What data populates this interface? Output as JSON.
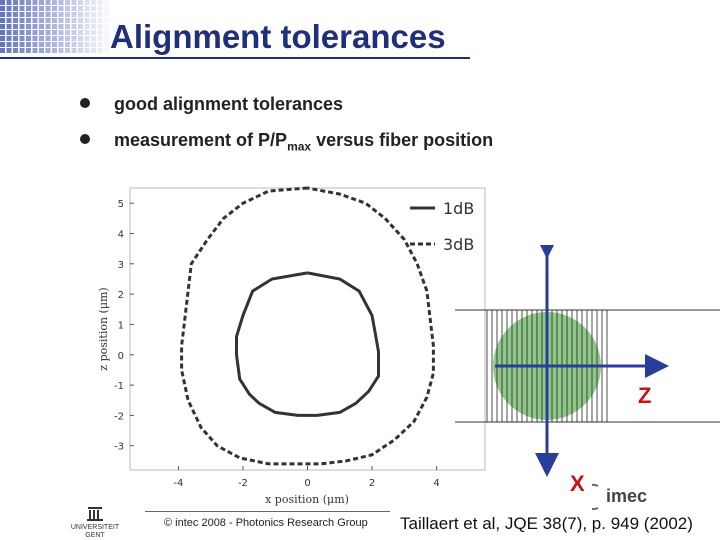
{
  "slide": {
    "title": "Alignment tolerances",
    "bullets": [
      {
        "text": "good alignment tolerances"
      },
      {
        "text_pre": "measurement of P/P",
        "sub": "max",
        "text_post": " versus fiber position"
      }
    ]
  },
  "chart_data": {
    "type": "line",
    "title": "",
    "xlabel": "x position (μm)",
    "ylabel": "z position (μm)",
    "xlim": [
      -5.5,
      5.5
    ],
    "ylim": [
      -3.8,
      5.5
    ],
    "xticks": [
      -4,
      -2,
      0,
      2,
      4
    ],
    "yticks": [
      -3,
      -2,
      -1,
      0,
      1,
      2,
      3,
      4,
      5
    ],
    "grid": false,
    "legend_position": "top-right",
    "series": [
      {
        "name": "1dB",
        "style": "solid",
        "points": [
          [
            0,
            2.7
          ],
          [
            -1.1,
            2.5
          ],
          [
            -1.7,
            2.1
          ],
          [
            -2.0,
            1.3
          ],
          [
            -2.2,
            0.6
          ],
          [
            -2.2,
            0.0
          ],
          [
            -2.1,
            -0.8
          ],
          [
            -1.8,
            -1.3
          ],
          [
            -1.5,
            -1.6
          ],
          [
            -1.0,
            -1.9
          ],
          [
            -0.3,
            -2.0
          ],
          [
            0.3,
            -2.0
          ],
          [
            1.0,
            -1.9
          ],
          [
            1.5,
            -1.6
          ],
          [
            1.9,
            -1.2
          ],
          [
            2.2,
            -0.7
          ],
          [
            2.2,
            0.1
          ],
          [
            2.1,
            0.7
          ],
          [
            2.0,
            1.3
          ],
          [
            1.6,
            2.1
          ],
          [
            1.0,
            2.5
          ],
          [
            0,
            2.7
          ]
        ]
      },
      {
        "name": "3dB",
        "style": "dashed",
        "points": [
          [
            0,
            5.5
          ],
          [
            -1.2,
            5.4
          ],
          [
            -2.0,
            5.0
          ],
          [
            -2.6,
            4.5
          ],
          [
            -3.1,
            3.8
          ],
          [
            -3.6,
            3.0
          ],
          [
            -3.7,
            2.1
          ],
          [
            -3.8,
            1.2
          ],
          [
            -3.9,
            0.3
          ],
          [
            -3.9,
            -0.5
          ],
          [
            -3.7,
            -1.5
          ],
          [
            -3.3,
            -2.4
          ],
          [
            -2.8,
            -3.0
          ],
          [
            -2.1,
            -3.4
          ],
          [
            -1.2,
            -3.6
          ],
          [
            -0.4,
            -3.6
          ],
          [
            0.4,
            -3.6
          ],
          [
            1.2,
            -3.5
          ],
          [
            2.0,
            -3.3
          ],
          [
            2.7,
            -2.8
          ],
          [
            3.3,
            -2.2
          ],
          [
            3.7,
            -1.4
          ],
          [
            3.9,
            -0.6
          ],
          [
            3.9,
            0.3
          ],
          [
            3.8,
            1.2
          ],
          [
            3.7,
            2.1
          ],
          [
            3.4,
            3.0
          ],
          [
            3.0,
            3.8
          ],
          [
            2.4,
            4.5
          ],
          [
            1.8,
            5.0
          ],
          [
            1.0,
            5.3
          ],
          [
            0,
            5.5
          ]
        ]
      }
    ]
  },
  "diagram": {
    "axis_z_label": "Z",
    "axis_x_label": "X",
    "axis_color": "#2a3d9b",
    "label_color": "#cc1111",
    "spot_color": "#8fc98a"
  },
  "footer": {
    "copyright": "© intec 2008 - Photonics Research Group",
    "citation": "Taillaert et al, JQE 38(7), p. 949 (2002)",
    "ugent_line1": "UNIVERSITEIT",
    "ugent_line2": "GENT",
    "imec": "imec"
  },
  "colors": {
    "title": "#1f2f7a"
  }
}
